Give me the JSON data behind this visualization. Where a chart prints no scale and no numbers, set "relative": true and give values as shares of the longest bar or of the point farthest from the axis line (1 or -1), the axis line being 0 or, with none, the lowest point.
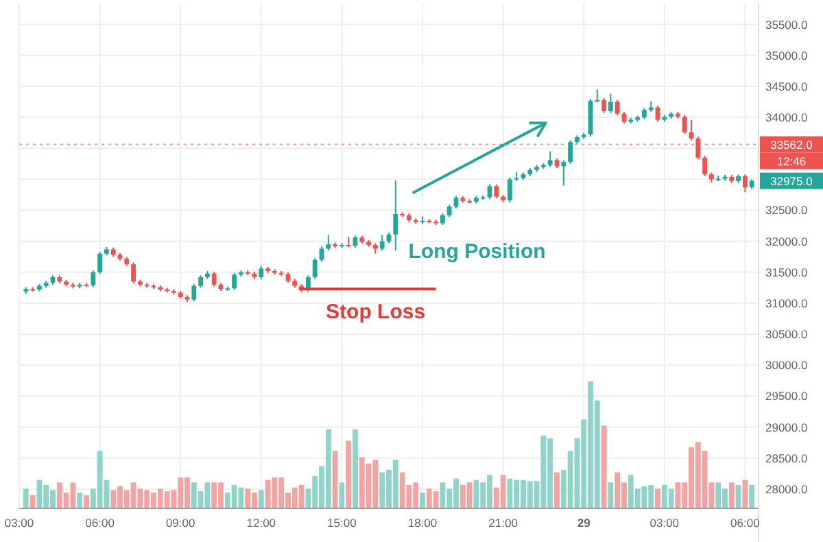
{
  "chart_data": [
    {
      "type": "candlestick",
      "grid": true,
      "x": [
        "--05-28T03:15",
        "--05-28T03:30",
        "--05-28T03:45",
        "--05-28T04:00",
        "--05-28T04:15",
        "--05-28T04:30",
        "--05-28T04:45",
        "--05-28T05:00",
        "--05-28T05:15",
        "--05-28T05:30",
        "--05-28T05:45",
        "--05-28T06:00",
        "--05-28T06:15",
        "--05-28T06:30",
        "--05-28T06:45",
        "--05-28T07:00",
        "--05-28T07:15",
        "--05-28T07:30",
        "--05-28T07:45",
        "--05-28T08:00",
        "--05-28T08:15",
        "--05-28T08:30",
        "--05-28T08:45",
        "--05-28T09:00",
        "--05-28T09:15",
        "--05-28T09:30",
        "--05-28T09:45",
        "--05-28T10:00",
        "--05-28T10:15",
        "--05-28T10:30",
        "--05-28T10:45",
        "--05-28T11:00",
        "--05-28T11:15",
        "--05-28T11:30",
        "--05-28T11:45",
        "--05-28T12:00",
        "--05-28T12:15",
        "--05-28T12:30",
        "--05-28T12:45",
        "--05-28T13:00",
        "--05-28T13:15",
        "--05-28T13:30",
        "--05-28T13:45",
        "--05-28T14:00",
        "--05-28T14:15",
        "--05-28T14:30",
        "--05-28T14:45",
        "--05-28T15:00",
        "--05-28T15:15",
        "--05-28T15:30",
        "--05-28T15:45",
        "--05-28T16:00",
        "--05-28T16:15",
        "--05-28T16:30",
        "--05-28T16:45",
        "--05-28T17:00",
        "--05-28T17:15",
        "--05-28T17:30",
        "--05-28T17:45",
        "--05-28T18:00",
        "--05-28T18:15",
        "--05-28T18:30",
        "--05-28T18:45",
        "--05-28T19:00",
        "--05-28T19:15",
        "--05-28T19:30",
        "--05-28T19:45",
        "--05-28T20:00",
        "--05-28T20:15",
        "--05-28T20:30",
        "--05-28T20:45",
        "--05-28T21:00",
        "--05-28T21:15",
        "--05-28T21:30",
        "--05-28T21:45",
        "--05-28T22:00",
        "--05-28T22:15",
        "--05-28T22:30",
        "--05-28T22:45",
        "--05-28T23:00",
        "--05-28T23:15",
        "--05-28T23:30",
        "--05-28T23:45",
        "--05-29T00:00",
        "--05-29T00:15",
        "--05-29T00:30",
        "--05-29T00:45",
        "--05-29T01:00",
        "--05-29T01:15",
        "--05-29T01:30",
        "--05-29T01:45",
        "--05-29T02:00",
        "--05-29T02:15",
        "--05-29T02:30",
        "--05-29T02:45",
        "--05-29T03:00",
        "--05-29T03:15",
        "--05-29T03:30",
        "--05-29T03:45",
        "--05-29T04:00",
        "--05-29T04:15",
        "--05-29T04:30",
        "--05-29T04:45",
        "--05-29T05:00",
        "--05-29T05:15",
        "--05-29T05:30",
        "--05-29T05:45",
        "--05-29T06:00",
        "--05-29T06:15"
      ],
      "ohlc": [
        [
          31190,
          31260,
          31150,
          31230
        ],
        [
          31230,
          31260,
          31190,
          31220
        ],
        [
          31220,
          31310,
          31190,
          31280
        ],
        [
          31280,
          31360,
          31250,
          31330
        ],
        [
          31330,
          31450,
          31300,
          31420
        ],
        [
          31420,
          31450,
          31320,
          31350
        ],
        [
          31350,
          31380,
          31270,
          31300
        ],
        [
          31300,
          31330,
          31240,
          31270
        ],
        [
          31270,
          31330,
          31240,
          31300
        ],
        [
          31300,
          31330,
          31260,
          31290
        ],
        [
          31290,
          31530,
          31260,
          31500
        ],
        [
          31500,
          31830,
          31470,
          31800
        ],
        [
          31800,
          31910,
          31770,
          31870
        ],
        [
          31870,
          31900,
          31750,
          31780
        ],
        [
          31780,
          31810,
          31690,
          31720
        ],
        [
          31720,
          31750,
          31600,
          31630
        ],
        [
          31630,
          31660,
          31320,
          31350
        ],
        [
          31350,
          31380,
          31270,
          31300
        ],
        [
          31300,
          31330,
          31250,
          31280
        ],
        [
          31280,
          31310,
          31230,
          31260
        ],
        [
          31260,
          31290,
          31190,
          31220
        ],
        [
          31220,
          31250,
          31170,
          31200
        ],
        [
          31200,
          31230,
          31140,
          31170
        ],
        [
          31170,
          31200,
          31070,
          31100
        ],
        [
          31100,
          31130,
          31020,
          31060
        ],
        [
          31060,
          31310,
          31030,
          31280
        ],
        [
          31280,
          31450,
          31250,
          31420
        ],
        [
          31420,
          31520,
          31390,
          31480
        ],
        [
          31480,
          31510,
          31270,
          31300
        ],
        [
          31300,
          31330,
          31200,
          31230
        ],
        [
          31230,
          31270,
          31200,
          31240
        ],
        [
          31240,
          31490,
          31210,
          31460
        ],
        [
          31460,
          31530,
          31430,
          31500
        ],
        [
          31500,
          31530,
          31450,
          31480
        ],
        [
          31480,
          31510,
          31390,
          31420
        ],
        [
          31420,
          31600,
          31390,
          31560
        ],
        [
          31560,
          31590,
          31490,
          31520
        ],
        [
          31520,
          31550,
          31460,
          31490
        ],
        [
          31490,
          31520,
          31440,
          31470
        ],
        [
          31470,
          31500,
          31330,
          31360
        ],
        [
          31360,
          31390,
          31250,
          31280
        ],
        [
          31280,
          31310,
          31180,
          31210
        ],
        [
          31210,
          31450,
          31180,
          31420
        ],
        [
          31420,
          31730,
          31390,
          31700
        ],
        [
          31700,
          31920,
          31670,
          31880
        ],
        [
          31880,
          32100,
          31850,
          31950
        ],
        [
          31950,
          31980,
          31890,
          31920
        ],
        [
          31920,
          31970,
          31890,
          31940
        ],
        [
          31940,
          32070,
          31900,
          31930
        ],
        [
          31930,
          32090,
          31900,
          32060
        ],
        [
          32060,
          32090,
          31960,
          31990
        ],
        [
          31990,
          32020,
          31910,
          31940
        ],
        [
          31940,
          31970,
          31800,
          31880
        ],
        [
          31880,
          32100,
          31850,
          32000
        ],
        [
          32000,
          32140,
          31970,
          32110
        ],
        [
          32110,
          32980,
          31850,
          32440
        ],
        [
          32440,
          32470,
          32390,
          32420
        ],
        [
          32420,
          32450,
          32310,
          32340
        ],
        [
          32340,
          32370,
          32280,
          32310
        ],
        [
          32310,
          32400,
          32280,
          32330
        ],
        [
          32330,
          32360,
          32290,
          32320
        ],
        [
          32320,
          32350,
          32260,
          32290
        ],
        [
          32290,
          32450,
          32260,
          32420
        ],
        [
          32420,
          32590,
          32390,
          32560
        ],
        [
          32560,
          32730,
          32530,
          32700
        ],
        [
          32700,
          32730,
          32620,
          32650
        ],
        [
          32650,
          32680,
          32610,
          32640
        ],
        [
          32640,
          32730,
          32610,
          32700
        ],
        [
          32700,
          32740,
          32670,
          32710
        ],
        [
          32710,
          32920,
          32680,
          32890
        ],
        [
          32890,
          32920,
          32690,
          32720
        ],
        [
          32720,
          32750,
          32630,
          32660
        ],
        [
          32660,
          33030,
          32630,
          33000
        ],
        [
          33000,
          33120,
          32970,
          33020
        ],
        [
          33020,
          33110,
          32990,
          33080
        ],
        [
          33080,
          33180,
          33050,
          33150
        ],
        [
          33150,
          33230,
          33120,
          33200
        ],
        [
          33200,
          33260,
          33170,
          33230
        ],
        [
          33230,
          33450,
          33200,
          33310
        ],
        [
          33310,
          33340,
          33180,
          33210
        ],
        [
          33210,
          33310,
          32900,
          33280
        ],
        [
          33280,
          33630,
          33250,
          33600
        ],
        [
          33600,
          33710,
          33570,
          33680
        ],
        [
          33680,
          33750,
          33650,
          33720
        ],
        [
          33720,
          34300,
          33690,
          34270
        ],
        [
          34270,
          34450,
          34240,
          34280
        ],
        [
          34280,
          34310,
          34070,
          34100
        ],
        [
          34100,
          34380,
          34070,
          34250
        ],
        [
          34250,
          34280,
          34030,
          34060
        ],
        [
          34060,
          34090,
          33900,
          33930
        ],
        [
          33930,
          33990,
          33900,
          33960
        ],
        [
          33960,
          34030,
          33930,
          34000
        ],
        [
          34000,
          34150,
          33970,
          34120
        ],
        [
          34120,
          34260,
          34090,
          34160
        ],
        [
          34160,
          34190,
          33930,
          33960
        ],
        [
          33960,
          34040,
          33930,
          34010
        ],
        [
          34010,
          34090,
          33980,
          34060
        ],
        [
          34060,
          34090,
          33980,
          34010
        ],
        [
          34010,
          34040,
          33730,
          33760
        ],
        [
          33760,
          33960,
          33630,
          33660
        ],
        [
          33660,
          33690,
          33320,
          33350
        ],
        [
          33350,
          33380,
          33050,
          33080
        ],
        [
          33080,
          33110,
          32950,
          33000
        ],
        [
          33000,
          33060,
          32970,
          33010
        ],
        [
          33010,
          33070,
          32980,
          33040
        ],
        [
          33040,
          33070,
          32940,
          32970
        ],
        [
          32970,
          33080,
          32940,
          33050
        ],
        [
          33050,
          33080,
          32790,
          32870
        ],
        [
          32870,
          33000,
          32840,
          32975
        ]
      ],
      "colors": [
        "#26a69a",
        "#ef5350",
        "#26a69a",
        "#26a69a",
        "#26a69a",
        "#ef5350",
        "#ef5350",
        "#ef5350",
        "#26a69a",
        "#ef5350",
        "#26a69a",
        "#26a69a",
        "#26a69a",
        "#ef5350",
        "#ef5350",
        "#ef5350",
        "#ef5350",
        "#ef5350",
        "#ef5350",
        "#ef5350",
        "#ef5350",
        "#ef5350",
        "#ef5350",
        "#ef5350",
        "#ef5350",
        "#26a69a",
        "#26a69a",
        "#26a69a",
        "#ef5350",
        "#ef5350",
        "#26a69a",
        "#26a69a",
        "#26a69a",
        "#ef5350",
        "#ef5350",
        "#26a69a",
        "#ef5350",
        "#ef5350",
        "#ef5350",
        "#ef5350",
        "#ef5350",
        "#ef5350",
        "#26a69a",
        "#26a69a",
        "#26a69a",
        "#26a69a",
        "#ef5350",
        "#26a69a",
        "#ef5350",
        "#26a69a",
        "#ef5350",
        "#ef5350",
        "#ef5350",
        "#26a69a",
        "#26a69a",
        "#26a69a",
        "#ef5350",
        "#ef5350",
        "#ef5350",
        "#26a69a",
        "#ef5350",
        "#ef5350",
        "#26a69a",
        "#26a69a",
        "#26a69a",
        "#ef5350",
        "#ef5350",
        "#26a69a",
        "#26a69a",
        "#26a69a",
        "#ef5350",
        "#ef5350",
        "#26a69a",
        "#26a69a",
        "#26a69a",
        "#26a69a",
        "#26a69a",
        "#26a69a",
        "#26a69a",
        "#ef5350",
        "#26a69a",
        "#26a69a",
        "#26a69a",
        "#26a69a",
        "#26a69a",
        "#26a69a",
        "#ef5350",
        "#26a69a",
        "#ef5350",
        "#ef5350",
        "#26a69a",
        "#26a69a",
        "#26a69a",
        "#26a69a",
        "#ef5350",
        "#26a69a",
        "#26a69a",
        "#ef5350",
        "#ef5350",
        "#ef5350",
        "#ef5350",
        "#ef5350",
        "#ef5350",
        "#26a69a",
        "#26a69a",
        "#ef5350",
        "#26a69a",
        "#ef5350",
        "#26a69a"
      ],
      "series": [
        {
          "type": "line",
          "color": "#e53935",
          "x": [
            "--05-28T13:24",
            "--05-28T18:30"
          ],
          "values": [
            31230,
            31230
          ]
        }
      ],
      "xlim": [
        "--05-28T03:00",
        "--05-29T06:30"
      ],
      "ylim": [
        27700,
        35850
      ],
      "xticks": [
        {
          "value": "--05-28T03:00",
          "label": "03:00"
        },
        {
          "value": "--05-28T06:00",
          "label": "06:00"
        },
        {
          "value": "--05-28T09:00",
          "label": "09:00"
        },
        {
          "value": "--05-28T12:00",
          "label": "12:00"
        },
        {
          "value": "--05-28T15:00",
          "label": "15:00"
        },
        {
          "value": "--05-28T18:00",
          "label": "18:00"
        },
        {
          "value": "--05-28T21:00",
          "label": "21:00"
        },
        {
          "value": "--05-29T00:00",
          "label": "29"
        },
        {
          "value": "--05-29T03:00",
          "label": "03:00"
        },
        {
          "value": "--05-29T06:00",
          "label": "06:00"
        }
      ],
      "yticks": [
        {
          "value": 28000,
          "label": "28000.0"
        },
        {
          "value": 28500,
          "label": "28500.0"
        },
        {
          "value": 29000,
          "label": "29000.0"
        },
        {
          "value": 29500,
          "label": "29500.0"
        },
        {
          "value": 30000,
          "label": "30000.0"
        },
        {
          "value": 30500,
          "label": "30500.0"
        },
        {
          "value": 31000,
          "label": "31000.0"
        },
        {
          "value": 31500,
          "label": "31500.0"
        },
        {
          "value": 32000,
          "label": "32000.0"
        },
        {
          "value": 32500,
          "label": "32500.0"
        },
        {
          "value": 33000,
          "label": null
        },
        {
          "value": 33500,
          "label": null
        },
        {
          "value": 34000,
          "label": "34000.0"
        },
        {
          "value": 34500,
          "label": "34500.0"
        },
        {
          "value": 35000,
          "label": "35000.0"
        },
        {
          "value": 35500,
          "label": "35500.0"
        }
      ],
      "ref_lines": [
        {
          "axis": "y",
          "value": 33562,
          "label": "33562.0",
          "color": "#ef5350",
          "line_style": "dotted"
        }
      ],
      "annotations": [
        "Long Position",
        "Stop Loss",
        "12:46",
        "32975.0"
      ]
    },
    {
      "type": "bar",
      "relative": true,
      "categories": [
        null,
        null,
        null,
        null,
        null,
        null,
        null,
        null,
        null,
        null,
        null,
        null,
        null,
        null,
        null,
        null,
        null,
        null,
        null,
        null,
        null,
        null,
        null,
        null,
        null,
        null,
        null,
        null,
        null,
        null,
        null,
        null,
        null,
        null,
        null,
        null,
        null,
        null,
        null,
        null,
        null,
        null,
        null,
        null,
        null,
        null,
        null,
        null,
        null,
        null,
        null,
        null,
        null,
        null,
        null,
        null,
        null,
        null,
        null,
        null,
        null,
        null,
        null,
        null,
        null,
        null,
        null,
        null,
        null,
        null,
        null,
        null,
        null,
        null,
        null,
        null,
        null,
        null,
        null,
        null,
        null,
        null,
        null,
        null,
        null,
        null,
        null,
        null,
        null,
        null,
        null,
        null,
        null,
        null,
        null,
        null,
        null,
        null,
        null,
        null,
        null,
        null,
        null,
        null,
        null,
        null,
        null,
        null,
        null
      ],
      "values": [
        0.15,
        0.1,
        0.22,
        0.18,
        0.14,
        0.2,
        0.12,
        0.2,
        0.12,
        0.1,
        0.15,
        0.45,
        0.22,
        0.14,
        0.17,
        0.14,
        0.2,
        0.15,
        0.14,
        0.12,
        0.15,
        0.13,
        0.14,
        0.24,
        0.24,
        0.2,
        0.13,
        0.2,
        0.2,
        0.2,
        0.12,
        0.18,
        0.16,
        0.15,
        0.12,
        0.14,
        0.22,
        0.24,
        0.24,
        0.12,
        0.16,
        0.18,
        0.15,
        0.25,
        0.33,
        0.62,
        0.45,
        0.2,
        0.53,
        0.62,
        0.4,
        0.35,
        0.38,
        0.28,
        0.3,
        0.38,
        0.28,
        0.18,
        0.2,
        0.12,
        0.15,
        0.13,
        0.2,
        0.15,
        0.23,
        0.18,
        0.2,
        0.22,
        0.2,
        0.26,
        0.16,
        0.26,
        0.23,
        0.22,
        0.22,
        0.21,
        0.21,
        0.57,
        0.55,
        0.28,
        0.3,
        0.45,
        0.55,
        0.7,
        1,
        0.85,
        0.65,
        0.2,
        0.28,
        0.2,
        0.26,
        0.15,
        0.17,
        0.18,
        0.15,
        0.18,
        0.15,
        0.2,
        0.2,
        0.48,
        0.52,
        0.45,
        0.2,
        0.2,
        0.15,
        0.2,
        0.18,
        0.22,
        0.18
      ],
      "colors": [
        "#8fd3c9",
        "#f4a3a3",
        "#8fd3c9",
        "#8fd3c9",
        "#8fd3c9",
        "#f4a3a3",
        "#f4a3a3",
        "#f4a3a3",
        "#8fd3c9",
        "#f4a3a3",
        "#8fd3c9",
        "#8fd3c9",
        "#8fd3c9",
        "#f4a3a3",
        "#f4a3a3",
        "#f4a3a3",
        "#f4a3a3",
        "#f4a3a3",
        "#f4a3a3",
        "#f4a3a3",
        "#f4a3a3",
        "#f4a3a3",
        "#f4a3a3",
        "#f4a3a3",
        "#f4a3a3",
        "#8fd3c9",
        "#8fd3c9",
        "#8fd3c9",
        "#f4a3a3",
        "#f4a3a3",
        "#8fd3c9",
        "#8fd3c9",
        "#8fd3c9",
        "#f4a3a3",
        "#f4a3a3",
        "#8fd3c9",
        "#f4a3a3",
        "#f4a3a3",
        "#f4a3a3",
        "#f4a3a3",
        "#f4a3a3",
        "#f4a3a3",
        "#8fd3c9",
        "#8fd3c9",
        "#8fd3c9",
        "#8fd3c9",
        "#f4a3a3",
        "#8fd3c9",
        "#f4a3a3",
        "#8fd3c9",
        "#f4a3a3",
        "#f4a3a3",
        "#f4a3a3",
        "#8fd3c9",
        "#8fd3c9",
        "#8fd3c9",
        "#f4a3a3",
        "#f4a3a3",
        "#f4a3a3",
        "#8fd3c9",
        "#f4a3a3",
        "#f4a3a3",
        "#8fd3c9",
        "#8fd3c9",
        "#8fd3c9",
        "#f4a3a3",
        "#f4a3a3",
        "#8fd3c9",
        "#8fd3c9",
        "#8fd3c9",
        "#f4a3a3",
        "#f4a3a3",
        "#8fd3c9",
        "#8fd3c9",
        "#8fd3c9",
        "#8fd3c9",
        "#8fd3c9",
        "#8fd3c9",
        "#8fd3c9",
        "#f4a3a3",
        "#8fd3c9",
        "#8fd3c9",
        "#8fd3c9",
        "#8fd3c9",
        "#8fd3c9",
        "#8fd3c9",
        "#f4a3a3",
        "#8fd3c9",
        "#f4a3a3",
        "#f4a3a3",
        "#8fd3c9",
        "#8fd3c9",
        "#8fd3c9",
        "#8fd3c9",
        "#f4a3a3",
        "#8fd3c9",
        "#8fd3c9",
        "#f4a3a3",
        "#f4a3a3",
        "#f4a3a3",
        "#f4a3a3",
        "#f4a3a3",
        "#f4a3a3",
        "#8fd3c9",
        "#8fd3c9",
        "#f4a3a3",
        "#8fd3c9",
        "#f4a3a3",
        "#8fd3c9"
      ]
    }
  ]
}
